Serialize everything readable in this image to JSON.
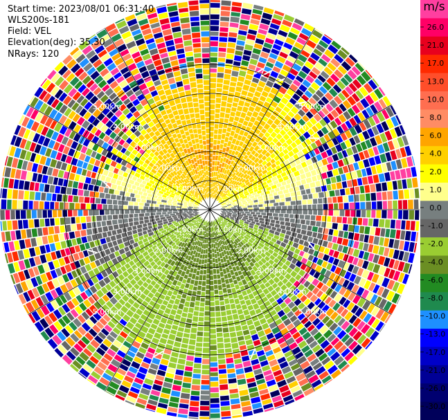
{
  "header": {
    "start_time": "Start time: 2023/08/01 06:31:40",
    "instrument": "WLS200s-181",
    "field": "Field: VEL",
    "elevation": "Elevation(deg): 35.30",
    "nrays": "NRays: 120"
  },
  "chart_data": {
    "type": "heatmap",
    "projection": "polar-ppi",
    "nrays": 120,
    "ring_labels": [
      "1.00km",
      "2.00km",
      "3.00km",
      "4.00km",
      "5.00km"
    ],
    "colorbar": {
      "unit": "m/s",
      "tick_labels": [
        "26.0",
        "21.0",
        "17.0",
        "13.0",
        "10.0",
        "8.0",
        "6.0",
        "4.0",
        "2.0",
        "1.0",
        "0.0",
        "-1.0",
        "-2.0",
        "-4.0",
        "-6.0",
        "-8.0",
        "-10.0",
        "-13.0",
        "-17.0",
        "-21.0",
        "-26.0",
        "-30.0"
      ],
      "colors": [
        "#ff3fa0",
        "#ff0066",
        "#e8001e",
        "#ff2a00",
        "#ff4e2a",
        "#ff6e50",
        "#ff8c64",
        "#ffa500",
        "#ffd000",
        "#ffff00",
        "#ffff8c",
        "#777f7f",
        "#666666",
        "#9acd32",
        "#6b8e23",
        "#228b22",
        "#1f8a4e",
        "#1e90ff",
        "#0000ff",
        "#0000c8",
        "#000096",
        "#000070",
        "#00005a"
      ]
    },
    "grid": true
  }
}
